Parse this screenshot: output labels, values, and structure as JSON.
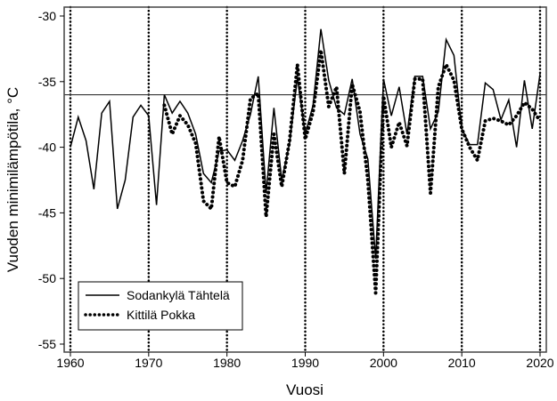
{
  "chart_data": {
    "type": "line",
    "title": "",
    "xlabel": "Vuosi",
    "ylabel": "Vuoden minimilämpötila, °C",
    "xlim": [
      1959.2,
      2020.8
    ],
    "ylim": [
      -55.5,
      -29.3
    ],
    "xticks": [
      1960,
      1970,
      1980,
      1990,
      2000,
      2010,
      2020
    ],
    "yticks": [
      -30,
      -35,
      -40,
      -45,
      -50,
      -55
    ],
    "reference_line": -36,
    "decade_lines": [
      1960,
      1970,
      1980,
      1990,
      2000,
      2010,
      2020
    ],
    "legend_position": "bottom-left",
    "series": [
      {
        "name": "Sodankylä Tähtelä",
        "style": "solid",
        "x": [
          1960,
          1961,
          1962,
          1963,
          1964,
          1965,
          1966,
          1967,
          1968,
          1969,
          1970,
          1971,
          1972,
          1973,
          1974,
          1975,
          1976,
          1977,
          1978,
          1979,
          1980,
          1981,
          1982,
          1983,
          1984,
          1985,
          1986,
          1987,
          1988,
          1989,
          1990,
          1991,
          1992,
          1993,
          1994,
          1995,
          1996,
          1997,
          1998,
          1999,
          2000,
          2001,
          2002,
          2003,
          2004,
          2005,
          2006,
          2007,
          2008,
          2009,
          2010,
          2011,
          2012,
          2013,
          2014,
          2015,
          2016,
          2017,
          2018,
          2019,
          2020
        ],
        "values": [
          -40.0,
          -37.7,
          -39.5,
          -43.2,
          -37.4,
          -36.5,
          -44.7,
          -42.5,
          -37.7,
          -36.8,
          -37.6,
          -44.4,
          -36.0,
          -37.4,
          -36.5,
          -37.4,
          -39.0,
          -42.0,
          -42.7,
          -40.3,
          -40.2,
          -41.0,
          -39.5,
          -37.5,
          -34.6,
          -43.5,
          -37.0,
          -42.5,
          -39.7,
          -34.7,
          -39.0,
          -36.8,
          -31.0,
          -34.9,
          -37.0,
          -37.5,
          -34.8,
          -39.0,
          -40.9,
          -48.5,
          -34.8,
          -37.6,
          -35.4,
          -39.0,
          -34.6,
          -34.6,
          -38.6,
          -37.3,
          -31.8,
          -33.0,
          -38.6,
          -39.8,
          -39.8,
          -35.1,
          -35.6,
          -37.9,
          -36.4,
          -40.0,
          -34.9,
          -38.6,
          -34.4
        ]
      },
      {
        "name": "Kittilä Pokka",
        "style": "dotted",
        "x": [
          1972,
          1973,
          1974,
          1975,
          1976,
          1977,
          1978,
          1979,
          1980,
          1981,
          1982,
          1983,
          1984,
          1985,
          1986,
          1987,
          1988,
          1989,
          1990,
          1991,
          1992,
          1993,
          1994,
          1995,
          1996,
          1997,
          1998,
          1999,
          2000,
          2001,
          2002,
          2003,
          2004,
          2005,
          2006,
          2007,
          2008,
          2009,
          2010,
          2011,
          2012,
          2013,
          2014,
          2015,
          2016,
          2017,
          2018,
          2019,
          2020
        ],
        "values": [
          -36.8,
          -39.0,
          -37.6,
          -38.3,
          -39.7,
          -44.1,
          -44.7,
          -39.2,
          -42.7,
          -43.0,
          -41.0,
          -36.3,
          -35.9,
          -45.3,
          -39.0,
          -43.0,
          -39.5,
          -33.7,
          -39.4,
          -37.3,
          -32.6,
          -36.9,
          -35.4,
          -42.0,
          -35.2,
          -37.3,
          -42.5,
          -51.1,
          -36.1,
          -40.0,
          -38.1,
          -39.9,
          -34.8,
          -34.8,
          -43.5,
          -35.4,
          -33.7,
          -34.9,
          -38.6,
          -40.0,
          -41.0,
          -38.0,
          -37.8,
          -38.0,
          -38.3,
          -37.6,
          -36.6,
          -37.1,
          -38.0
        ]
      }
    ]
  }
}
